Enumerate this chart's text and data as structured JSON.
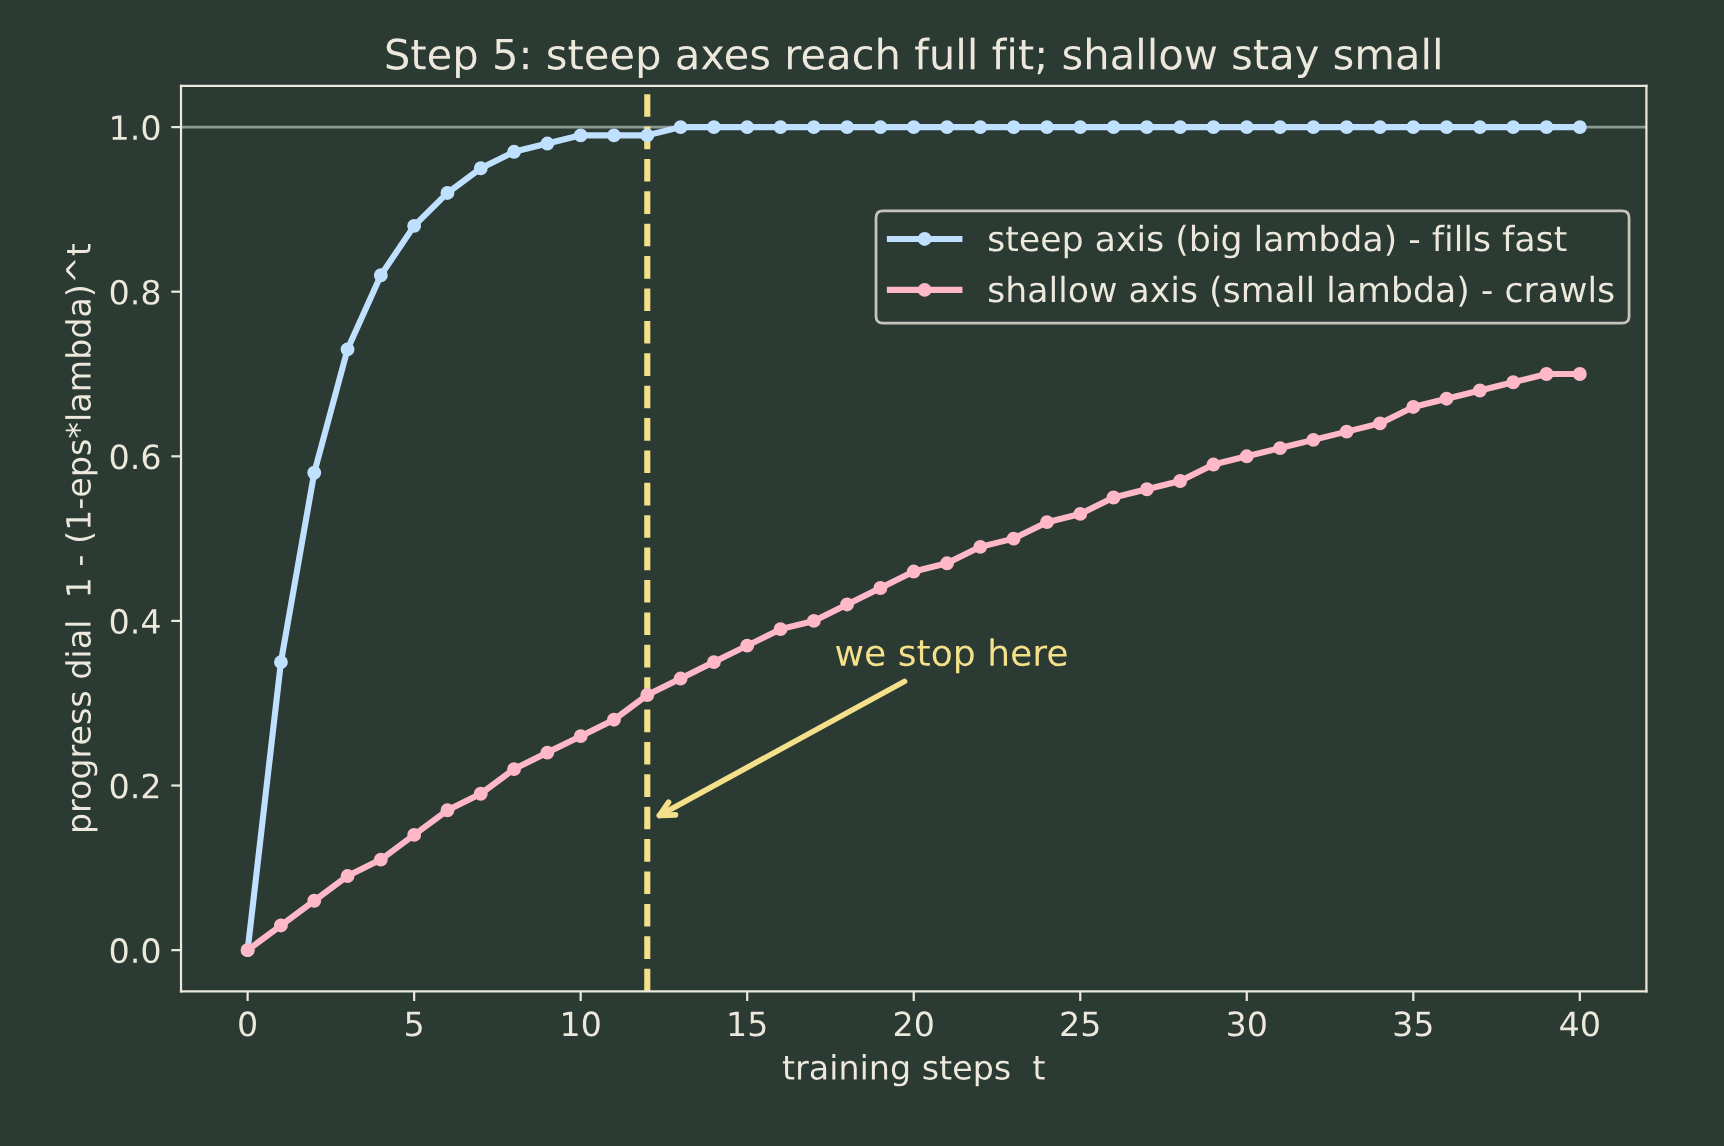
{
  "chart_data": {
    "type": "line",
    "title": "Step 5: steep axes reach full fit; shallow stay small",
    "xlabel": "training steps  t",
    "ylabel": "progress dial  1 - (1-eps*lambda)^t",
    "x": [
      0,
      1,
      2,
      3,
      4,
      5,
      6,
      7,
      8,
      9,
      10,
      11,
      12,
      13,
      14,
      15,
      16,
      17,
      18,
      19,
      20,
      21,
      22,
      23,
      24,
      25,
      26,
      27,
      28,
      29,
      30,
      31,
      32,
      33,
      34,
      35,
      36,
      37,
      38,
      39,
      40
    ],
    "series": [
      {
        "name": "steep axis (big lambda) - fills fast",
        "color": "#bfe0ff",
        "values": [
          0,
          0.35,
          0.58,
          0.73,
          0.82,
          0.88,
          0.92,
          0.95,
          0.97,
          0.98,
          0.99,
          0.99,
          0.99,
          1.0,
          1.0,
          1.0,
          1.0,
          1.0,
          1.0,
          1.0,
          1.0,
          1.0,
          1.0,
          1.0,
          1.0,
          1.0,
          1.0,
          1.0,
          1.0,
          1.0,
          1.0,
          1.0,
          1.0,
          1.0,
          1.0,
          1.0,
          1.0,
          1.0,
          1.0,
          1.0,
          1.0
        ]
      },
      {
        "name": "shallow axis (small lambda) - crawls",
        "color": "#ffb8c8",
        "values": [
          0,
          0.03,
          0.06,
          0.09,
          0.11,
          0.14,
          0.17,
          0.19,
          0.22,
          0.24,
          0.26,
          0.28,
          0.31,
          0.33,
          0.35,
          0.37,
          0.39,
          0.4,
          0.42,
          0.44,
          0.46,
          0.47,
          0.49,
          0.5,
          0.52,
          0.53,
          0.55,
          0.56,
          0.57,
          0.59,
          0.6,
          0.61,
          0.62,
          0.63,
          0.64,
          0.66,
          0.67,
          0.68,
          0.69,
          0.7,
          0.7
        ]
      }
    ],
    "xlim": [
      -2,
      42
    ],
    "ylim": [
      -0.05,
      1.05
    ],
    "xticks": [
      0,
      5,
      10,
      15,
      20,
      25,
      30,
      35,
      40
    ],
    "yticks": [
      {
        "value": 0,
        "label": "0.0"
      },
      {
        "value": 0.2,
        "label": "0.2"
      },
      {
        "value": 0.4,
        "label": "0.4"
      },
      {
        "value": 0.6,
        "label": "0.6"
      },
      {
        "value": 0.8,
        "label": "0.8"
      },
      {
        "value": 1.0,
        "label": "1.0"
      }
    ],
    "ref_lines": [
      {
        "axis": "y",
        "value": 1.0,
        "color": "#8a9a90",
        "line_style": "solid"
      },
      {
        "axis": "x",
        "value": 12,
        "color": "#f5e08a",
        "line_style": "dashed"
      }
    ],
    "annotations": [
      {
        "text": "we stop here",
        "x": 12.2,
        "y": 0.16
      }
    ],
    "marker": "circle",
    "line_style": "solid",
    "grid": false,
    "legend": "right"
  }
}
